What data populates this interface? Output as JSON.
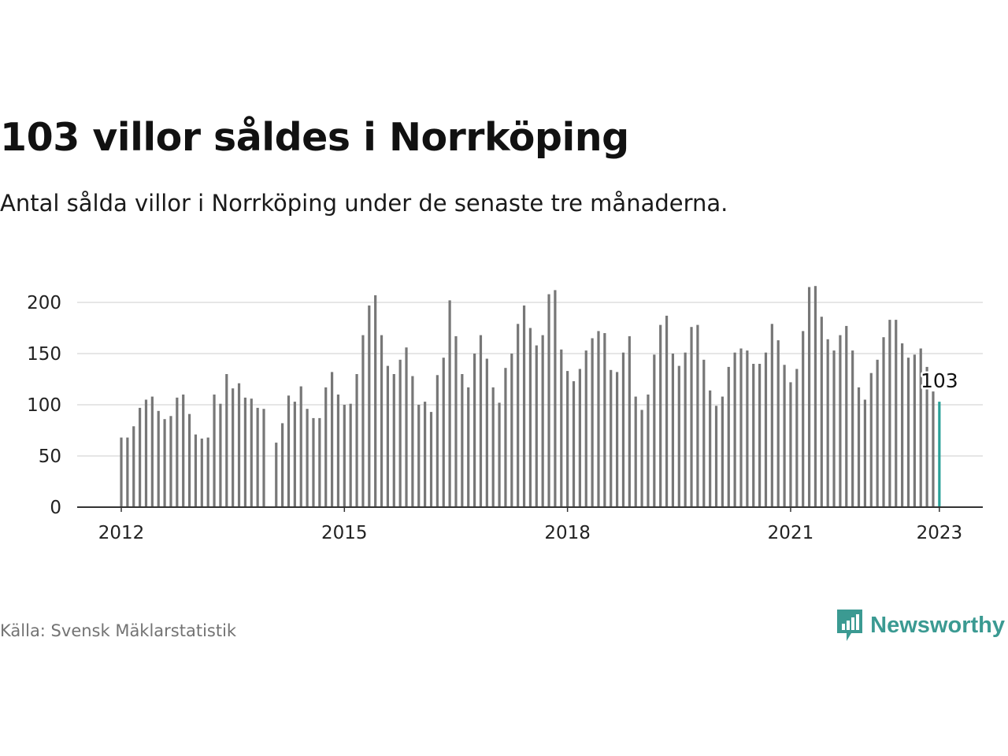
{
  "title": "103 villor såldes i Norrköping",
  "subtitle": "Antal sålda villor i Norrköping under de senaste tre månaderna.",
  "source": "Källa: Svensk Mäklarstatistik",
  "brand": "Newsworthy",
  "colors": {
    "bar": "#777777",
    "highlight": "#2aa198",
    "grid": "#dddddd",
    "axis": "#333333",
    "brand": "#3b9a92"
  },
  "chart_data": {
    "type": "bar",
    "x_unit": "month",
    "x_start": "2012-01",
    "x": [
      "2012-01",
      "2012-02",
      "2012-03",
      "2012-04",
      "2012-05",
      "2012-06",
      "2012-07",
      "2012-08",
      "2012-09",
      "2012-10",
      "2012-11",
      "2012-12",
      "2013-01",
      "2013-02",
      "2013-03",
      "2013-04",
      "2013-05",
      "2013-06",
      "2013-07",
      "2013-08",
      "2013-09",
      "2013-10",
      "2013-11",
      "2013-12",
      "2014-01",
      "2014-02",
      "2014-03",
      "2014-04",
      "2014-05",
      "2014-06",
      "2014-07",
      "2014-08",
      "2014-09",
      "2014-10",
      "2014-11",
      "2014-12",
      "2015-01",
      "2015-02",
      "2015-03",
      "2015-04",
      "2015-05",
      "2015-06",
      "2015-07",
      "2015-08",
      "2015-09",
      "2015-10",
      "2015-11",
      "2015-12",
      "2016-01",
      "2016-02",
      "2016-03",
      "2016-04",
      "2016-05",
      "2016-06",
      "2016-07",
      "2016-08",
      "2016-09",
      "2016-10",
      "2016-11",
      "2016-12",
      "2017-01",
      "2017-02",
      "2017-03",
      "2017-04",
      "2017-05",
      "2017-06",
      "2017-07",
      "2017-08",
      "2017-09",
      "2017-10",
      "2017-11",
      "2017-12",
      "2018-01",
      "2018-02",
      "2018-03",
      "2018-04",
      "2018-05",
      "2018-06",
      "2018-07",
      "2018-08",
      "2018-09",
      "2018-10",
      "2018-11",
      "2018-12",
      "2019-01",
      "2019-02",
      "2019-03",
      "2019-04",
      "2019-05",
      "2019-06",
      "2019-07",
      "2019-08",
      "2019-09",
      "2019-10",
      "2019-11",
      "2019-12",
      "2020-01",
      "2020-02",
      "2020-03",
      "2020-04",
      "2020-05",
      "2020-06",
      "2020-07",
      "2020-08",
      "2020-09",
      "2020-10",
      "2020-11",
      "2020-12",
      "2021-01",
      "2021-02",
      "2021-03",
      "2021-04",
      "2021-05",
      "2021-06",
      "2021-07",
      "2021-08",
      "2021-09",
      "2021-10",
      "2021-11",
      "2021-12",
      "2022-01",
      "2022-02",
      "2022-03",
      "2022-04",
      "2022-05",
      "2022-06",
      "2022-07",
      "2022-08",
      "2022-09",
      "2022-10",
      "2022-11",
      "2022-12",
      "2023-01"
    ],
    "values": [
      68,
      68,
      79,
      97,
      105,
      108,
      94,
      86,
      89,
      107,
      110,
      91,
      71,
      67,
      68,
      110,
      101,
      130,
      116,
      121,
      107,
      106,
      97,
      96,
      null,
      63,
      82,
      109,
      103,
      118,
      96,
      87,
      87,
      117,
      132,
      110,
      100,
      101,
      130,
      168,
      197,
      207,
      168,
      138,
      130,
      144,
      156,
      128,
      100,
      103,
      93,
      129,
      146,
      202,
      167,
      130,
      117,
      150,
      168,
      145,
      117,
      102,
      136,
      150,
      179,
      197,
      175,
      158,
      168,
      208,
      212,
      154,
      133,
      123,
      135,
      153,
      165,
      172,
      170,
      134,
      132,
      151,
      167,
      108,
      95,
      110,
      149,
      178,
      187,
      150,
      138,
      151,
      176,
      178,
      144,
      114,
      99,
      108,
      137,
      151,
      155,
      153,
      140,
      140,
      151,
      179,
      163,
      139,
      122,
      135,
      172,
      215,
      216,
      186,
      164,
      153,
      168,
      177,
      153,
      117,
      105,
      131,
      144,
      166,
      183,
      183,
      160,
      146,
      149,
      155,
      137,
      113,
      103
    ],
    "highlight_last": true,
    "annotation": "103",
    "x_ticks": [
      "2012",
      "2015",
      "2018",
      "2021",
      "2023"
    ],
    "y_ticks": [
      "0",
      "50",
      "100",
      "150",
      "200"
    ],
    "ylim": [
      0,
      220
    ],
    "grid": true
  }
}
